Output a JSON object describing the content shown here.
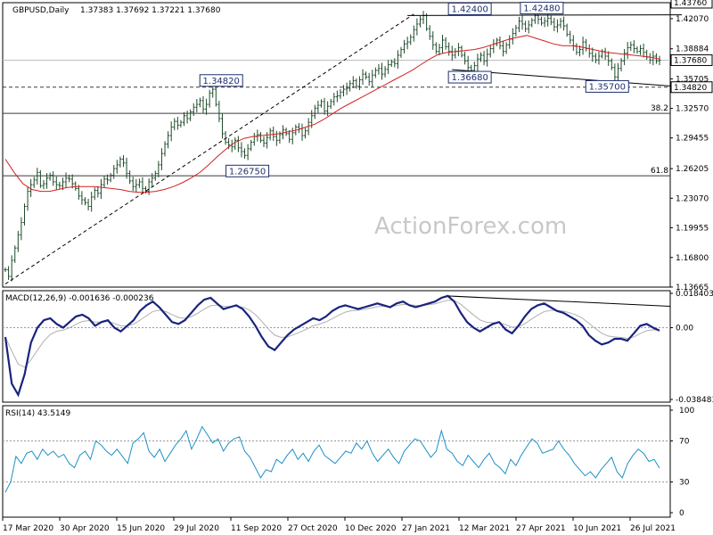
{
  "watermark": "ActionForex.com",
  "chart_data": {
    "type": "line",
    "instrument": "GBPUSD,Daily",
    "header": {
      "symbol": "GBPUSD,Daily",
      "ohlc": "1.37383 1.37692 1.37221 1.37680",
      "last_tag": "1.37680"
    },
    "x_labels": [
      "17 Mar 2020",
      "30 Apr 2020",
      "15 Jun 2020",
      "29 Jul 2020",
      "11 Sep 2020",
      "27 Oct 2020",
      "10 Dec 2020",
      "27 Jan 2021",
      "12 Mar 2021",
      "27 Apr 2021",
      "10 Jun 2021",
      "26 Jul 2021"
    ],
    "price": {
      "y_ticks": [
        1.1367,
        1.168,
        1.1995,
        1.2307,
        1.262,
        1.2945,
        1.3257,
        1.357,
        1.3888,
        1.4207
      ],
      "y_tick_labels": [
        "1.13665",
        "1.16800",
        "1.19955",
        "1.23070",
        "1.26205",
        "1.29455",
        "1.32570",
        "1.35705",
        "1.38884",
        "1.42070"
      ],
      "ylim": [
        1.13665,
        1.4376
      ],
      "tags": [
        {
          "value": 1.4376,
          "text": "1.43760",
          "style": "top"
        },
        {
          "value": 1.3768,
          "text": "1.37680",
          "style": "last"
        },
        {
          "value": 1.3482,
          "text": "1.34820",
          "style": "level"
        }
      ],
      "close_series": [
        1.155,
        1.148,
        1.165,
        1.178,
        1.192,
        1.205,
        1.222,
        1.238,
        1.245,
        1.25,
        1.258,
        1.244,
        1.246,
        1.252,
        1.255,
        1.248,
        1.245,
        1.244,
        1.248,
        1.252,
        1.251,
        1.246,
        1.241,
        1.233,
        1.229,
        1.226,
        1.222,
        1.232,
        1.239,
        1.236,
        1.245,
        1.251,
        1.25,
        1.255,
        1.262,
        1.266,
        1.272,
        1.268,
        1.257,
        1.249,
        1.243,
        1.245,
        1.248,
        1.241,
        1.238,
        1.248,
        1.252,
        1.257,
        1.266,
        1.278,
        1.288,
        1.297,
        1.306,
        1.312,
        1.308,
        1.311,
        1.318,
        1.315,
        1.322,
        1.327,
        1.33,
        1.334,
        1.325,
        1.33,
        1.342,
        1.346,
        1.33,
        1.315,
        1.299,
        1.29,
        1.287,
        1.285,
        1.292,
        1.284,
        1.28,
        1.276,
        1.283,
        1.29,
        1.296,
        1.298,
        1.292,
        1.289,
        1.295,
        1.302,
        1.296,
        1.292,
        1.298,
        1.303,
        1.299,
        1.293,
        1.3,
        1.306,
        1.304,
        1.297,
        1.302,
        1.311,
        1.318,
        1.326,
        1.329,
        1.333,
        1.323,
        1.328,
        1.333,
        1.338,
        1.339,
        1.343,
        1.346,
        1.347,
        1.352,
        1.355,
        1.349,
        1.356,
        1.362,
        1.359,
        1.354,
        1.361,
        1.366,
        1.368,
        1.362,
        1.367,
        1.372,
        1.375,
        1.373,
        1.382,
        1.388,
        1.394,
        1.396,
        1.401,
        1.409,
        1.415,
        1.42,
        1.424,
        1.41,
        1.402,
        1.393,
        1.386,
        1.39,
        1.398,
        1.391,
        1.386,
        1.382,
        1.386,
        1.39,
        1.382,
        1.376,
        1.369,
        1.366,
        1.371,
        1.378,
        1.382,
        1.376,
        1.383,
        1.389,
        1.394,
        1.398,
        1.392,
        1.386,
        1.393,
        1.399,
        1.405,
        1.411,
        1.418,
        1.415,
        1.41,
        1.414,
        1.419,
        1.424,
        1.42,
        1.416,
        1.418,
        1.421,
        1.417,
        1.412,
        1.414,
        1.418,
        1.413,
        1.404,
        1.398,
        1.392,
        1.385,
        1.388,
        1.396,
        1.389,
        1.384,
        1.381,
        1.377,
        1.381,
        1.386,
        1.381,
        1.376,
        1.369,
        1.359,
        1.368,
        1.376,
        1.384,
        1.39,
        1.393,
        1.389,
        1.386,
        1.389,
        1.385,
        1.38,
        1.377,
        1.381,
        1.376,
        1.3768
      ],
      "ma_series": [
        1.272,
        1.258,
        1.246,
        1.24,
        1.238,
        1.238,
        1.24,
        1.242,
        1.243,
        1.243,
        1.243,
        1.242,
        1.241,
        1.24,
        1.238,
        1.237,
        1.237,
        1.238,
        1.24,
        1.243,
        1.247,
        1.252,
        1.258,
        1.266,
        1.275,
        1.283,
        1.29,
        1.294,
        1.296,
        1.297,
        1.298,
        1.299,
        1.301,
        1.303,
        1.306,
        1.309,
        1.314,
        1.32,
        1.326,
        1.331,
        1.336,
        1.341,
        1.346,
        1.351,
        1.356,
        1.361,
        1.366,
        1.372,
        1.378,
        1.383,
        1.385,
        1.386,
        1.387,
        1.388,
        1.39,
        1.393,
        1.396,
        1.399,
        1.401,
        1.403,
        1.4,
        1.397,
        1.394,
        1.392,
        1.392,
        1.391,
        1.389,
        1.387,
        1.385,
        1.384,
        1.383,
        1.382,
        1.381,
        1.38,
        1.378
      ],
      "levels": [
        {
          "name": "38.2",
          "value": 1.3205,
          "label": "38.2"
        },
        {
          "name": "61.8",
          "value": 1.2545,
          "label": "61.8"
        },
        {
          "name": "dashed",
          "value": 1.3482,
          "label": ""
        },
        {
          "name": "1.3768",
          "value": 1.3768,
          "label": ""
        }
      ],
      "annotations": [
        {
          "text": "1.42400",
          "value": 1.424,
          "xi": 0.71
        },
        {
          "text": "1.42480",
          "value": 1.4248,
          "xi": 0.82
        },
        {
          "text": "1.34820",
          "value": 1.3482,
          "xi": 0.33
        },
        {
          "text": "1.36680",
          "value": 1.3668,
          "xi": 0.71
        },
        {
          "text": "1.35700",
          "value": 1.357,
          "xi": 0.92
        },
        {
          "text": "1.26750",
          "value": 1.2675,
          "xi": 0.37
        }
      ]
    },
    "macd": {
      "label": "MACD(12,26,9) -0.001636 -0.000236",
      "y_tick_labels": [
        "0.018403",
        "0.00",
        "-0.038483"
      ],
      "ylim": [
        -0.038483,
        0.018403
      ],
      "series": [
        -0.005,
        -0.03,
        -0.036,
        -0.025,
        -0.008,
        0.0,
        0.004,
        0.005,
        0.002,
        0.0,
        0.003,
        0.006,
        0.007,
        0.005,
        0.001,
        0.003,
        0.004,
        0.0,
        -0.002,
        0.001,
        0.004,
        0.009,
        0.012,
        0.014,
        0.011,
        0.007,
        0.003,
        0.002,
        0.004,
        0.008,
        0.012,
        0.015,
        0.016,
        0.013,
        0.01,
        0.011,
        0.012,
        0.01,
        0.006,
        0.001,
        -0.005,
        -0.01,
        -0.012,
        -0.008,
        -0.004,
        -0.001,
        0.001,
        0.003,
        0.005,
        0.004,
        0.006,
        0.009,
        0.011,
        0.012,
        0.011,
        0.01,
        0.011,
        0.012,
        0.013,
        0.012,
        0.011,
        0.013,
        0.014,
        0.012,
        0.011,
        0.012,
        0.013,
        0.014,
        0.016,
        0.017,
        0.014,
        0.008,
        0.003,
        0.0,
        -0.002,
        0.0,
        0.002,
        0.003,
        -0.001,
        -0.003,
        0.001,
        0.006,
        0.01,
        0.012,
        0.013,
        0.011,
        0.009,
        0.008,
        0.006,
        0.004,
        0.001,
        -0.004,
        -0.007,
        -0.009,
        -0.008,
        -0.006,
        -0.006,
        -0.007,
        -0.003,
        0.001,
        0.002,
        0.0,
        -0.0016
      ]
    },
    "rsi": {
      "label": "RSI(14) 43.5149",
      "y_tick_labels": [
        "100",
        "70",
        "30",
        "0"
      ],
      "ylim": [
        0,
        100
      ],
      "series": [
        20,
        30,
        55,
        48,
        58,
        60,
        52,
        62,
        56,
        60,
        54,
        57,
        48,
        44,
        56,
        60,
        52,
        70,
        66,
        60,
        56,
        62,
        55,
        48,
        68,
        72,
        78,
        60,
        54,
        62,
        50,
        58,
        66,
        72,
        80,
        62,
        72,
        84,
        76,
        68,
        72,
        60,
        68,
        72,
        74,
        60,
        54,
        44,
        34,
        42,
        40,
        52,
        48,
        56,
        62,
        52,
        58,
        50,
        60,
        66,
        56,
        52,
        48,
        54,
        60,
        58,
        68,
        62,
        70,
        58,
        50,
        56,
        62,
        54,
        48,
        60,
        66,
        72,
        70,
        62,
        54,
        60,
        80,
        62,
        58,
        50,
        46,
        56,
        50,
        44,
        52,
        58,
        48,
        44,
        38,
        52,
        46,
        56,
        64,
        72,
        68,
        58,
        60,
        62,
        70,
        62,
        56,
        48,
        42,
        36,
        40,
        34,
        42,
        48,
        54,
        40,
        34,
        48,
        56,
        62,
        58,
        50,
        52,
        43.5
      ]
    }
  }
}
